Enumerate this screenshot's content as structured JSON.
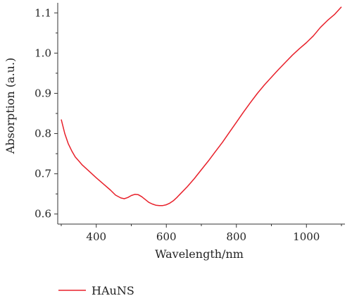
{
  "chart_data": {
    "type": "line",
    "xlabel": "Wavelength/nm",
    "ylabel": "Absorption (a.u.)",
    "xlim": [
      290,
      1110
    ],
    "ylim": [
      0.575,
      1.125
    ],
    "xticks": [
      400,
      600,
      800,
      1000
    ],
    "yticks": [
      0.6,
      0.7,
      0.8,
      0.9,
      1.0,
      1.1
    ],
    "xtick_labels": [
      "400",
      "600",
      "800",
      "1000"
    ],
    "ytick_labels": [
      "0.6",
      "0.7",
      "0.8",
      "0.9",
      "1.0",
      "1.1"
    ],
    "grid": false,
    "legend": "bottom-left",
    "series": [
      {
        "name": "HAuNS",
        "color": "#e8202a",
        "x": [
          300,
          310,
          320,
          330,
          340,
          350,
          360,
          380,
          400,
          420,
          440,
          455,
          470,
          480,
          490,
          500,
          510,
          520,
          530,
          540,
          550,
          560,
          570,
          580,
          590,
          600,
          610,
          620,
          630,
          640,
          660,
          680,
          700,
          720,
          740,
          760,
          780,
          800,
          820,
          840,
          860,
          880,
          900,
          920,
          940,
          960,
          980,
          1000,
          1020,
          1040,
          1060,
          1080,
          1100
        ],
        "y": [
          0.835,
          0.8,
          0.775,
          0.757,
          0.742,
          0.732,
          0.722,
          0.706,
          0.69,
          0.675,
          0.66,
          0.647,
          0.64,
          0.638,
          0.641,
          0.646,
          0.649,
          0.648,
          0.643,
          0.636,
          0.629,
          0.625,
          0.622,
          0.621,
          0.621,
          0.623,
          0.627,
          0.633,
          0.641,
          0.65,
          0.668,
          0.688,
          0.71,
          0.732,
          0.755,
          0.778,
          0.803,
          0.828,
          0.853,
          0.877,
          0.9,
          0.921,
          0.94,
          0.959,
          0.977,
          0.995,
          1.011,
          1.026,
          1.043,
          1.064,
          1.081,
          1.096,
          1.115
        ]
      }
    ]
  }
}
